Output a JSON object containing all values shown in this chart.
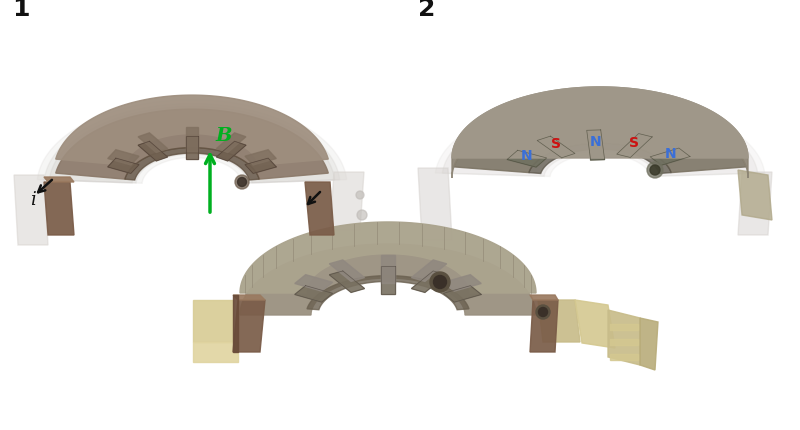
{
  "background_color": "#ffffff",
  "label1": "1",
  "label2": "2",
  "B_label": "B",
  "i_label": "i",
  "N_color": "#3A6FD8",
  "S_color": "#CC1111",
  "arrow_green": "#00B020",
  "arrow_black": "#111111",
  "top_dome_color": "#A09880",
  "top_dome_dark": "#7A7060",
  "top_dome_light": "#B8B098",
  "inner_claw_dark": "#706858",
  "inner_claw_mid": "#908070",
  "coil_brown": "#7A5C48",
  "coil_brown_light": "#9A7A60",
  "cream_tan": "#D8CC96",
  "cream_tan_light": "#E8E0B8",
  "ghost_color": "#D0CCCC",
  "side_panel": "#DCDCDC",
  "horseshoe_body": "#8A7868",
  "horseshoe_top": "#A09080",
  "claw_tooth": "#706858",
  "connector_tan": "#C8BC8A",
  "bottom_dark": "#5A5040"
}
